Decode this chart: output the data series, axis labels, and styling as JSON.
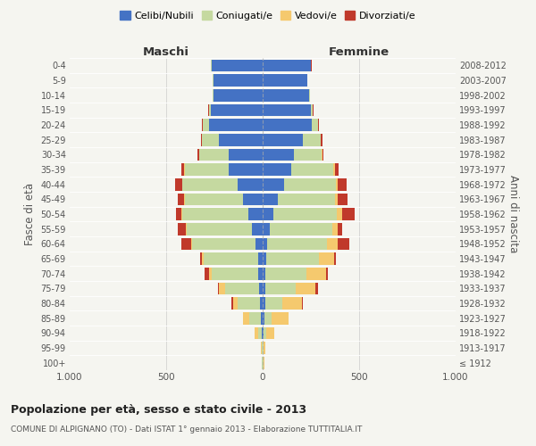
{
  "age_groups": [
    "100+",
    "95-99",
    "90-94",
    "85-89",
    "80-84",
    "75-79",
    "70-74",
    "65-69",
    "60-64",
    "55-59",
    "50-54",
    "45-49",
    "40-44",
    "35-39",
    "30-34",
    "25-29",
    "20-24",
    "15-19",
    "10-14",
    "5-9",
    "0-4"
  ],
  "birth_years": [
    "≤ 1912",
    "1913-1917",
    "1918-1922",
    "1923-1927",
    "1928-1932",
    "1933-1937",
    "1938-1942",
    "1943-1947",
    "1948-1952",
    "1953-1957",
    "1958-1962",
    "1963-1967",
    "1968-1972",
    "1973-1977",
    "1978-1982",
    "1983-1987",
    "1988-1992",
    "1993-1997",
    "1998-2002",
    "2003-2007",
    "2008-2012"
  ],
  "maschi": {
    "celibi": [
      2,
      2,
      5,
      10,
      15,
      20,
      25,
      25,
      35,
      55,
      75,
      100,
      130,
      175,
      175,
      225,
      280,
      270,
      255,
      255,
      265
    ],
    "coniugati": [
      2,
      3,
      20,
      60,
      115,
      175,
      240,
      280,
      330,
      340,
      340,
      305,
      285,
      230,
      155,
      90,
      30,
      10,
      5,
      2,
      2
    ],
    "vedovi": [
      0,
      2,
      15,
      30,
      25,
      30,
      15,
      10,
      5,
      5,
      5,
      3,
      2,
      2,
      1,
      1,
      1,
      0,
      0,
      0,
      0
    ],
    "divorziati": [
      0,
      0,
      0,
      0,
      5,
      5,
      20,
      10,
      50,
      40,
      30,
      30,
      35,
      15,
      5,
      5,
      5,
      2,
      1,
      1,
      1
    ]
  },
  "femmine": {
    "nubili": [
      2,
      2,
      5,
      10,
      15,
      15,
      15,
      20,
      25,
      35,
      55,
      80,
      110,
      150,
      160,
      210,
      255,
      250,
      240,
      230,
      250
    ],
    "coniugate": [
      2,
      3,
      15,
      35,
      85,
      155,
      210,
      270,
      310,
      325,
      330,
      295,
      270,
      215,
      145,
      90,
      30,
      10,
      5,
      2,
      2
    ],
    "vedove": [
      3,
      10,
      40,
      90,
      105,
      105,
      105,
      80,
      55,
      30,
      25,
      15,
      10,
      8,
      5,
      3,
      2,
      1,
      0,
      0,
      0
    ],
    "divorziate": [
      0,
      0,
      0,
      0,
      5,
      10,
      10,
      10,
      60,
      20,
      65,
      50,
      45,
      20,
      5,
      5,
      3,
      2,
      1,
      1,
      1
    ]
  },
  "colors": {
    "celibi": "#4472c4",
    "coniugati": "#c5d9a0",
    "vedovi": "#f5c96e",
    "divorziati": "#c0392b"
  },
  "xlim": 1000,
  "title": "Popolazione per età, sesso e stato civile - 2013",
  "subtitle": "COMUNE DI ALPIGNANO (TO) - Dati ISTAT 1° gennaio 2013 - Elaborazione TUTTITALIA.IT",
  "ylabel": "Fasce di età",
  "ylabel_right": "Anni di nascita",
  "legend_labels": [
    "Celibi/Nubili",
    "Coniugati/e",
    "Vedovi/e",
    "Divorziati/e"
  ],
  "bg_color": "#f5f5f0"
}
